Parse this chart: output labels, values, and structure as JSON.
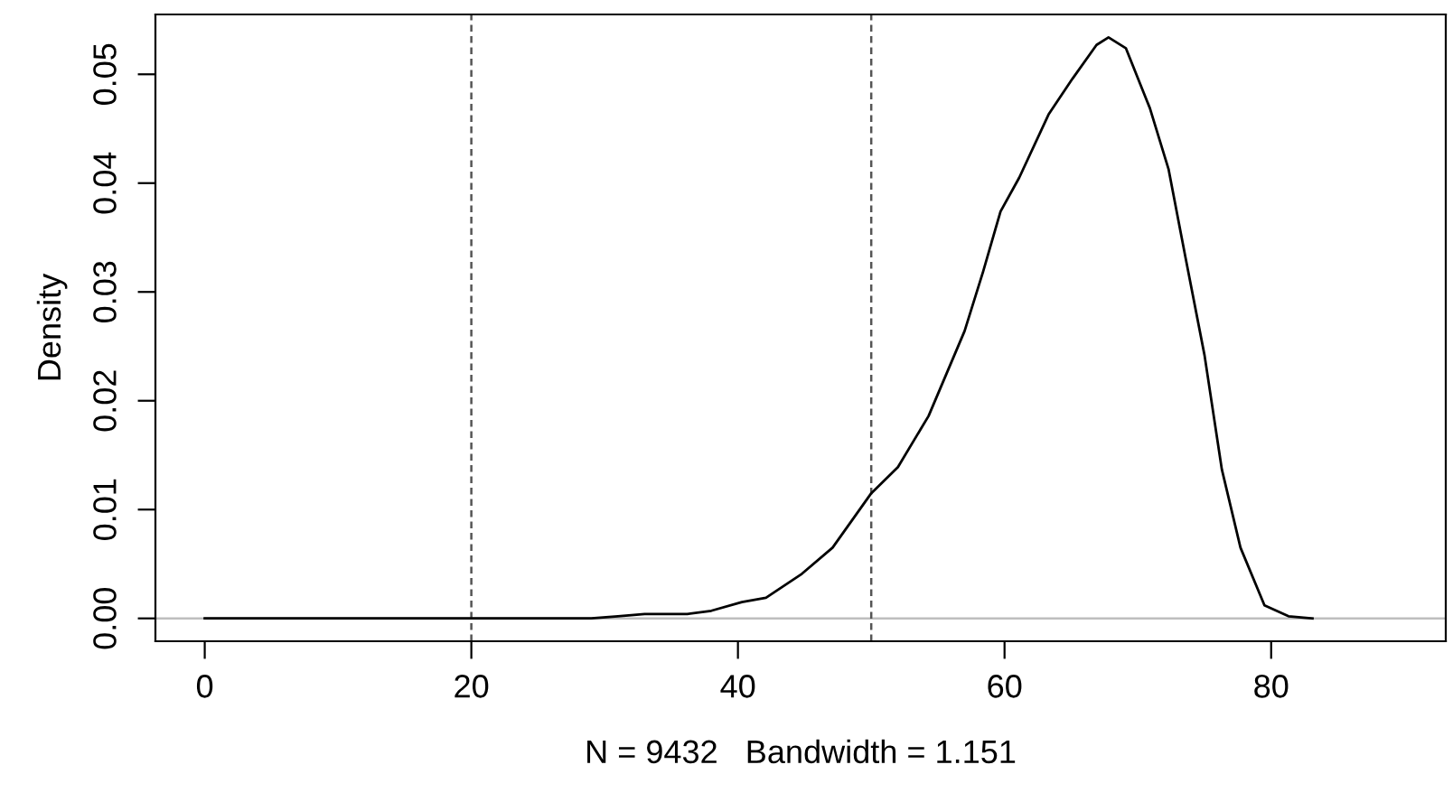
{
  "chart_data": {
    "type": "line",
    "xlabel": "N = 9432   Bandwidth = 1.151",
    "ylabel": "Density",
    "series": [
      {
        "color": "#000000",
        "x": [
          0,
          1,
          10,
          11,
          16,
          22,
          26,
          29,
          31,
          33,
          36.2,
          38.0,
          40.3,
          42.1,
          44.8,
          47.1,
          50.0,
          52.0,
          54.3,
          57.0,
          58.4,
          59.7,
          61.1,
          63.3,
          65.1,
          66.9,
          67.8,
          69.1,
          70.9,
          72.3,
          73.6,
          75.0,
          76.3,
          77.7,
          79.5,
          81.3,
          83.1
        ],
        "values": [
          0,
          0,
          0,
          0,
          0,
          0,
          0,
          0,
          0.0002,
          0.0004,
          0.0004,
          0.0007,
          0.0015,
          0.0019,
          0.0041,
          0.0065,
          0.0115,
          0.0139,
          0.0186,
          0.0264,
          0.0319,
          0.0374,
          0.0405,
          0.0463,
          0.0496,
          0.0527,
          0.0534,
          0.0524,
          0.0469,
          0.0413,
          0.033,
          0.0242,
          0.0137,
          0.0065,
          0.0012,
          0.0002,
          0
        ]
      }
    ],
    "xlim": [
      -3.7,
      93.1
    ],
    "ylim": [
      -0.0021,
      0.0555
    ],
    "xticks": [
      0,
      20,
      40,
      60,
      80
    ],
    "yticks": [
      {
        "value": 0,
        "label": "0.00"
      },
      {
        "value": 0.01,
        "label": "0.01"
      },
      {
        "value": 0.02,
        "label": "0.02"
      },
      {
        "value": 0.03,
        "label": "0.03"
      },
      {
        "value": 0.04,
        "label": "0.04"
      },
      {
        "value": 0.05,
        "label": "0.05"
      }
    ],
    "ref_lines": [
      {
        "axis": "y",
        "value": 0,
        "color": "#bebebe",
        "line_style": "solid"
      },
      {
        "axis": "x",
        "value": 20,
        "color": "#555555",
        "line_style": "dashed"
      },
      {
        "axis": "x",
        "value": 50,
        "color": "#555555",
        "line_style": "dashed"
      }
    ],
    "grid": false,
    "legend": false,
    "line_style": "solid",
    "marker": "none"
  }
}
